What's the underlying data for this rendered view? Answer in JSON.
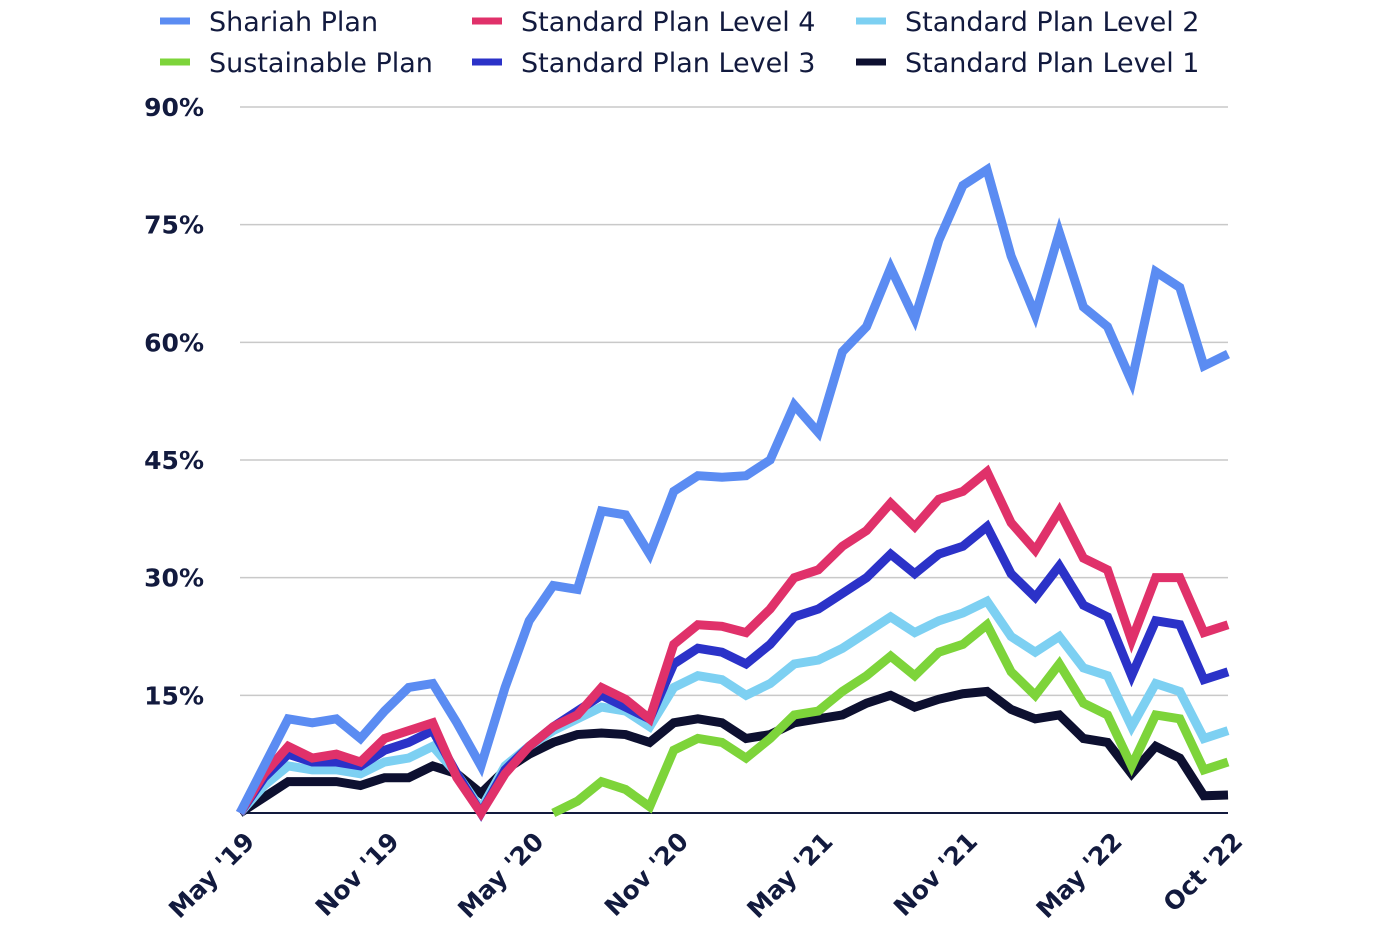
{
  "chart_data": {
    "type": "line",
    "title": "",
    "xlabel": "",
    "ylabel": "",
    "ylim": [
      0,
      90
    ],
    "yticks": [
      15,
      30,
      45,
      60,
      75,
      90
    ],
    "ytick_labels": [
      "15%",
      "30%",
      "45%",
      "60%",
      "75%",
      "90%"
    ],
    "grid": true,
    "legend_position": "top",
    "x_start": "May '19",
    "x_end": "Oct '22",
    "xtick_labels": [
      {
        "index": 0,
        "label": "May '19"
      },
      {
        "index": 6,
        "label": "Nov '19"
      },
      {
        "index": 12,
        "label": "May '20"
      },
      {
        "index": 18,
        "label": "Nov '20"
      },
      {
        "index": 24,
        "label": "May '21"
      },
      {
        "index": 30,
        "label": "Nov '21"
      },
      {
        "index": 36,
        "label": "May '22"
      },
      {
        "index": 41,
        "label": "Oct '22"
      }
    ],
    "series": [
      {
        "name": "Shariah Plan",
        "color": "#5b8cf2",
        "values": [
          0,
          6,
          12,
          11.5,
          12,
          9.5,
          13,
          16,
          16.5,
          11.5,
          6,
          16,
          24.5,
          29,
          28.5,
          38.5,
          38,
          33,
          41,
          43,
          42.8,
          43,
          45,
          52,
          48.5,
          58.8,
          62,
          69.5,
          63,
          73,
          80,
          82,
          71,
          63.5,
          74,
          64.5,
          62,
          55,
          69,
          67,
          57,
          58.5
        ]
      },
      {
        "name": "Sustainable Plan",
        "color": "#7dd43a",
        "start_index": 13,
        "values": [
          null,
          null,
          null,
          null,
          null,
          null,
          null,
          null,
          null,
          null,
          null,
          null,
          null,
          0,
          1.5,
          4,
          3,
          0.8,
          8,
          9.5,
          9,
          7,
          9.5,
          12.5,
          13,
          15.5,
          17.5,
          20,
          17.5,
          20.5,
          21.5,
          24,
          18,
          15,
          19,
          14,
          12.5,
          6,
          12.5,
          12,
          5.5,
          6.5
        ]
      },
      {
        "name": "Standard Plan Level 4",
        "color": "#e0316a",
        "values": [
          0,
          5,
          8.5,
          7,
          7.5,
          6.5,
          9.5,
          10.5,
          11.5,
          4.5,
          -1,
          5,
          8.5,
          11,
          12.5,
          16,
          14.5,
          12,
          21.5,
          24,
          23.8,
          23,
          26,
          30,
          31,
          34,
          36,
          39.5,
          36.5,
          40,
          41,
          43.5,
          37,
          33.5,
          38.5,
          32.5,
          31,
          22,
          30,
          30,
          23,
          24
        ]
      },
      {
        "name": "Standard Plan Level 3",
        "color": "#2b32c8",
        "values": [
          0,
          4.5,
          7.5,
          6.5,
          6.5,
          6,
          8,
          9,
          10.5,
          5,
          -0.5,
          5.5,
          8.5,
          11,
          13,
          15,
          13.5,
          12,
          19,
          21,
          20.5,
          19,
          21.5,
          25,
          26,
          28,
          30,
          33,
          30.5,
          33,
          34,
          36.5,
          30.5,
          27.5,
          31.5,
          26.5,
          25,
          17.5,
          24.5,
          24,
          17,
          18
        ]
      },
      {
        "name": "Standard Plan Level 2",
        "color": "#7dd0f2",
        "values": [
          0,
          3.5,
          6,
          5.5,
          5.5,
          5,
          6.5,
          7,
          8.5,
          5,
          0.5,
          6,
          8.5,
          10.5,
          12,
          13.5,
          13,
          11,
          16,
          17.5,
          17,
          15,
          16.5,
          19,
          19.5,
          21,
          23,
          25,
          23,
          24.5,
          25.5,
          27,
          22.5,
          20.5,
          22.5,
          18.5,
          17.5,
          11,
          16.5,
          15.5,
          9.5,
          10.5
        ]
      },
      {
        "name": "Standard Plan Level 1",
        "color": "#0d1030",
        "values": [
          0,
          2,
          4,
          4,
          4,
          3.5,
          4.5,
          4.5,
          6,
          5,
          2.5,
          5.5,
          7.5,
          9,
          10,
          10.2,
          10,
          9,
          11.5,
          12,
          11.5,
          9.5,
          10,
          11.5,
          12,
          12.5,
          14,
          15,
          13.5,
          14.5,
          15.2,
          15.5,
          13.2,
          12,
          12.5,
          9.5,
          9,
          5,
          8.5,
          7,
          2.2,
          2.3
        ]
      }
    ]
  }
}
